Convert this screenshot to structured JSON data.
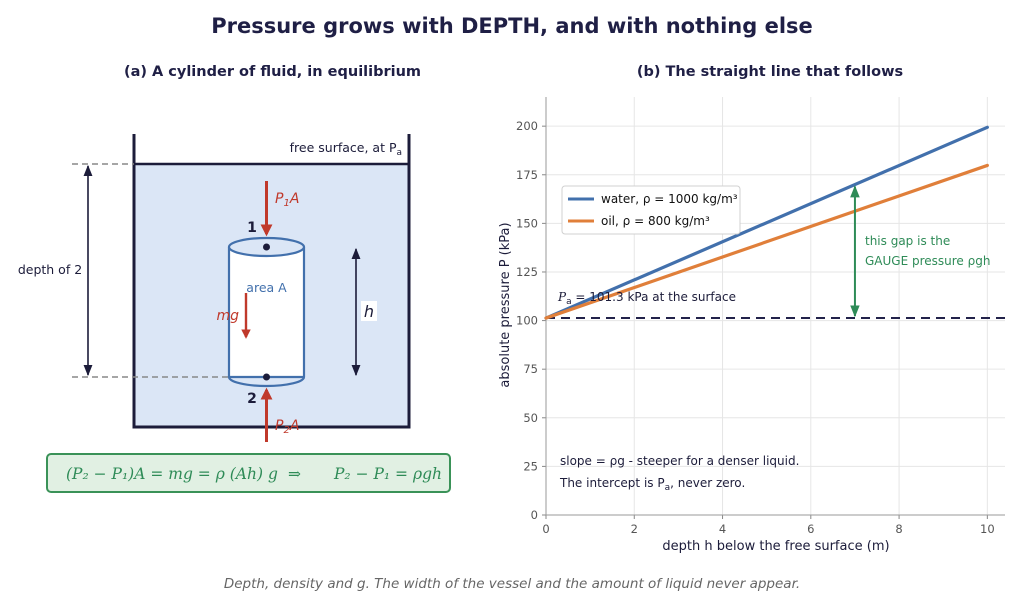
{
  "title": "Pressure grows with DEPTH, and with nothing else",
  "caption": "Depth, density and g. The width of the vessel and the amount of liquid never appear.",
  "panel_a": {
    "title": "(a) A cylinder of fluid, in equilibrium",
    "free_surface_label": "free surface, at P",
    "free_surface_sub": "a",
    "depth_label": "depth of 2",
    "force_top_label": "P",
    "force_top_sub": "1",
    "force_top_tail": "A",
    "force_bottom_label": "P",
    "force_bottom_sub": "2",
    "force_bottom_tail": "A",
    "weight_label": "mg",
    "area_label": "area A",
    "height_label": "h",
    "point1": "1",
    "point2": "2",
    "equation_left": "(P₂ − P₁)A = mg = ρ (Ah) g",
    "equation_arrow": "⇒",
    "equation_right": "P₂ − P₁ = ρgh"
  },
  "panel_b": {
    "title": "(b) The straight line that follows",
    "surface_note": "P",
    "surface_note_sub": "a",
    "surface_note_tail": " = 101.3 kPa at the surface",
    "gap_note_1": "this gap is the",
    "gap_note_2": "GAUGE pressure  ρgh",
    "slope_note_1": "slope  = ρg - steeper for a denser liquid.",
    "slope_note_2": "The intercept is P",
    "slope_note_2_sub": "a",
    "slope_note_2_tail": ", never zero."
  },
  "chart_data": {
    "type": "line",
    "xlabel": "depth  h  below the free surface   (m)",
    "ylabel": "absolute pressure  P   (kPa)",
    "xlim": [
      0,
      10.4
    ],
    "ylim": [
      0,
      215
    ],
    "xticks": [
      0,
      2,
      4,
      6,
      8,
      10
    ],
    "yticks": [
      0,
      25,
      50,
      75,
      100,
      125,
      150,
      175,
      200
    ],
    "grid": true,
    "legend_position": "upper-left",
    "reference_line": {
      "y": 101.3,
      "style": "dashed",
      "color": "#22224a"
    },
    "gap_marker_x": 7,
    "series": [
      {
        "name": "water, ρ = 1000 kg/m³",
        "color": "#4270ac",
        "x": [
          0,
          10
        ],
        "y": [
          101.3,
          199.4
        ]
      },
      {
        "name": "oil, ρ = 800 kg/m³",
        "color": "#e07f3a",
        "x": [
          0,
          10
        ],
        "y": [
          101.3,
          179.8
        ]
      }
    ]
  },
  "colors": {
    "fluid": "#dbe6f6",
    "vessel": "#1c1c3a",
    "cylinder": "#4270ac",
    "force": "#c0392b",
    "gauge": "#2e8b57"
  }
}
